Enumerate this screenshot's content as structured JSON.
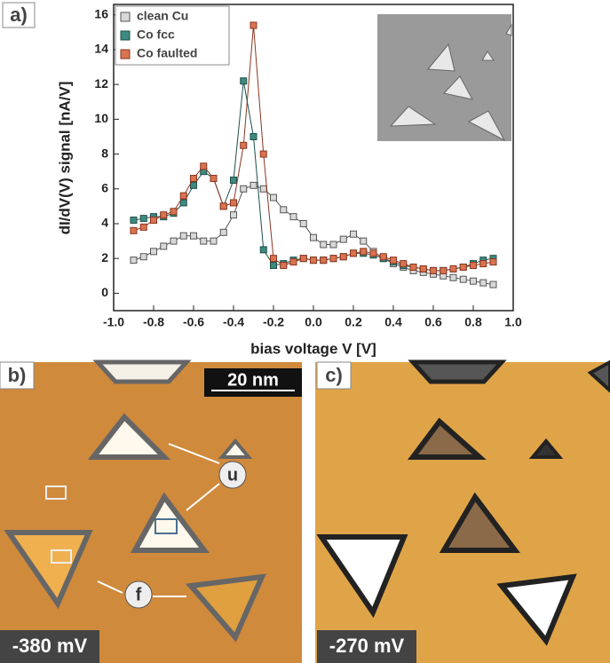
{
  "chart_data": {
    "type": "line",
    "panel_label": "a)",
    "x_label": "bias voltage V [V]",
    "y_label": "dI/dV(V) signal [nA/V]",
    "x": [
      -0.9,
      -0.85,
      -0.8,
      -0.75,
      -0.7,
      -0.65,
      -0.6,
      -0.55,
      -0.5,
      -0.45,
      -0.4,
      -0.35,
      -0.3,
      -0.25,
      -0.2,
      -0.15,
      -0.1,
      -0.05,
      0,
      0.05,
      0.1,
      0.15,
      0.2,
      0.25,
      0.3,
      0.35,
      0.4,
      0.45,
      0.5,
      0.55,
      0.6,
      0.65,
      0.7,
      0.75,
      0.8,
      0.85,
      0.9
    ],
    "series": [
      {
        "name": "clean Cu",
        "color": "#d8d8d8",
        "stroke": "#555555",
        "values": [
          1.9,
          2.1,
          2.4,
          2.7,
          3.0,
          3.3,
          3.3,
          3.0,
          3.0,
          3.5,
          4.5,
          6.0,
          6.2,
          6.0,
          5.5,
          4.8,
          4.4,
          4.0,
          3.2,
          2.8,
          2.8,
          3.1,
          3.4,
          3.0,
          2.4,
          2.0,
          1.7,
          1.5,
          1.3,
          1.2,
          1.1,
          1.0,
          0.9,
          0.8,
          0.7,
          0.6,
          0.5
        ]
      },
      {
        "name": "Co fcc",
        "color": "#3d8a80",
        "stroke": "#1f4f49",
        "values": [
          4.2,
          4.3,
          4.4,
          4.4,
          4.6,
          5.2,
          6.2,
          7.0,
          6.6,
          5.0,
          6.5,
          12.2,
          9.0,
          2.5,
          1.6,
          1.7,
          1.9,
          2.0,
          1.9,
          1.9,
          2.0,
          2.1,
          2.3,
          2.3,
          2.2,
          2.0,
          1.8,
          1.6,
          1.5,
          1.4,
          1.3,
          1.3,
          1.4,
          1.5,
          1.7,
          1.9,
          2.0
        ]
      },
      {
        "name": "Co faulted",
        "color": "#d9744f",
        "stroke": "#8a3520",
        "values": [
          3.6,
          3.8,
          4.2,
          4.5,
          4.7,
          5.6,
          6.6,
          7.3,
          6.6,
          5.0,
          5.2,
          8.5,
          15.4,
          8.0,
          2.0,
          1.6,
          1.8,
          2.0,
          1.9,
          1.9,
          2.0,
          2.1,
          2.3,
          2.4,
          2.3,
          2.1,
          1.9,
          1.7,
          1.5,
          1.4,
          1.3,
          1.3,
          1.4,
          1.5,
          1.6,
          1.7,
          1.8
        ]
      }
    ],
    "xlim": [
      -1.0,
      1.0
    ],
    "xticks": [
      {
        "value": -1.0,
        "label": "-1.0"
      },
      -0.8,
      -0.6,
      -0.4,
      -0.2,
      {
        "value": 0,
        "label": "0.0"
      },
      0.2,
      0.4,
      0.6,
      0.8,
      {
        "value": 1.0,
        "label": "1.0"
      }
    ],
    "ylim": [
      -1,
      16.6
    ],
    "yticks": [
      0,
      2,
      4,
      6,
      8,
      10,
      12,
      14,
      16
    ],
    "legend": "upper left"
  },
  "panels": {
    "b": {
      "label": "b)",
      "scale_bar": "20 nm",
      "bias": "-380 mV",
      "annotations": [
        "u",
        "f"
      ]
    },
    "c": {
      "label": "c)",
      "bias": "-270 mV"
    }
  }
}
